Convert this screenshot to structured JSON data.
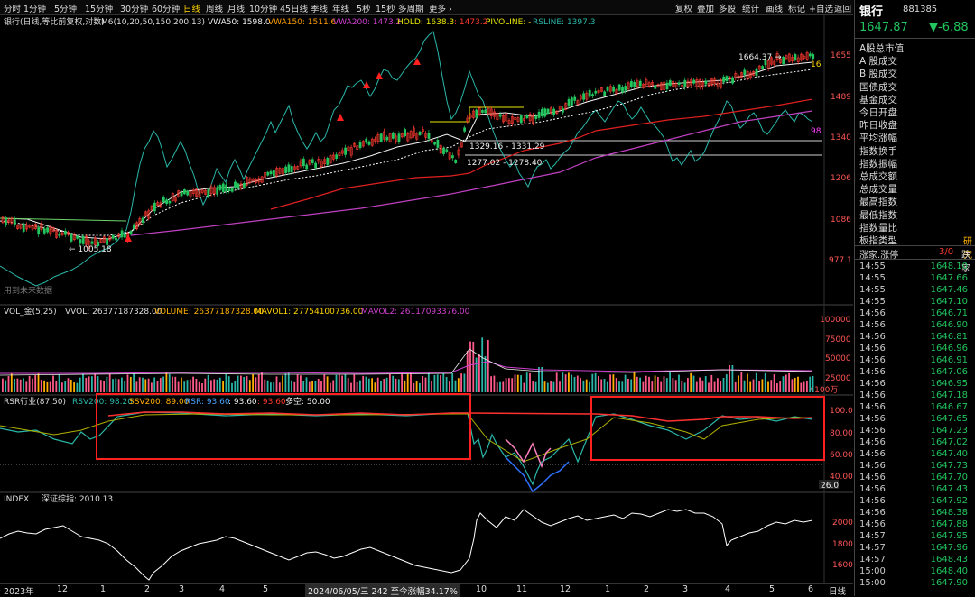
{
  "toolbar": {
    "periods": [
      "分时",
      "1分钟",
      "5分钟",
      "15分钟",
      "30分钟",
      "60分钟",
      "日线",
      "周线",
      "月线",
      "10分钟",
      "45日线",
      "季线",
      "年线",
      "5秒",
      "15秒",
      "多周期",
      "更多 ›"
    ],
    "active": "日线",
    "right_buttons": [
      "复权",
      "叠加",
      "多股",
      "统计",
      "画线",
      "标记",
      "+自选",
      "返回"
    ]
  },
  "main_chart": {
    "title": "银行(日线,等比前复权,对数)",
    "ma_label": "M6(10,20,50,150,200,13)",
    "vwa50": "VWA50: 1598.0",
    "vwa150": "VWA150: 1511.6",
    "vwa200": "VWA200: 1473.2",
    "hold": "HOLD: 1638.3",
    "hold2": ": 1473.2",
    "pivoline": "PIVOLINE: -",
    "rsline": "RSLINE: 1397.3",
    "y_ticks": [
      "1655",
      "1489",
      "1340",
      "1206",
      "1086",
      "977.1"
    ],
    "annotations": {
      "low": "← 1005.18",
      "high": "1664.37 →",
      "zone1": "1329.16 - 1331.29",
      "zone2": "1277.02 - 1278.40",
      "right_16": "16",
      "right_98": "98",
      "watermark": "用到未来数据"
    }
  },
  "volume_chart": {
    "title": "VOL_金(5,25)",
    "vvol": "VVOL: 26377187328.00",
    "volume": "VOLUME: 26377187328.00",
    "mavol1": "MAVOL1: 27754100736.00",
    "mavol2": "MAVOL2: 26117093376.00",
    "y_ticks": [
      "100000",
      "75000",
      "50000",
      "25000"
    ],
    "unit": "X100万"
  },
  "rsr_chart": {
    "title": "RSR行业(87,50)",
    "rsv200": "RSV200: 98.20",
    "ssv200": "SSV200: 89.00",
    "rsr": "RSR: 93.60",
    "v4": ": 93.60",
    "v5": ": 93.60",
    "dk": "多空: 50.00",
    "y_ticks": [
      "100.0",
      "80.00",
      "60.00",
      "40.00"
    ],
    "marker": "26.0"
  },
  "index_chart": {
    "title": "INDEX",
    "name": "深证综指: 2010.13",
    "y_ticks": [
      "2000",
      "1800",
      "1600"
    ]
  },
  "x_axis": {
    "labels": [
      "2023年",
      "12",
      "1",
      "2",
      "3",
      "4",
      "5",
      "10",
      "11",
      "12",
      "1",
      "2",
      "3",
      "4",
      "5",
      "6"
    ],
    "tooltip": "2024/06/05/三 242 至今涨幅34.17%",
    "right_label": "日线"
  },
  "quote_panel": {
    "name": "银行",
    "code": "881385",
    "price": "1647.87",
    "change": "▼-6.88",
    "fields": [
      "A股总市值",
      "A 股成交",
      "B 股成交",
      "国债成交",
      "基金成交",
      "今日开盘",
      "昨日收盘",
      "平均涨幅",
      "指数换手",
      "指数振幅",
      "总成交额",
      "总成交量",
      "最高指数",
      "最低指数",
      "指数量比",
      "板指类型"
    ],
    "board_type_value": "研究",
    "limit_label": "涨家.涨停",
    "limit_value": "3/0",
    "limit_right": "跌家",
    "ticks": [
      {
        "t": "14:55",
        "p": "1648.10"
      },
      {
        "t": "14:55",
        "p": "1647.66"
      },
      {
        "t": "14:55",
        "p": "1647.46"
      },
      {
        "t": "14:55",
        "p": "1647.10"
      },
      {
        "t": "14:56",
        "p": "1646.71"
      },
      {
        "t": "14:56",
        "p": "1646.90"
      },
      {
        "t": "14:56",
        "p": "1646.81"
      },
      {
        "t": "14:56",
        "p": "1646.96"
      },
      {
        "t": "14:56",
        "p": "1646.91"
      },
      {
        "t": "14:56",
        "p": "1647.06"
      },
      {
        "t": "14:56",
        "p": "1646.95"
      },
      {
        "t": "14:56",
        "p": "1647.18"
      },
      {
        "t": "14:56",
        "p": "1646.67"
      },
      {
        "t": "14:56",
        "p": "1647.65"
      },
      {
        "t": "14:56",
        "p": "1647.23"
      },
      {
        "t": "14:56",
        "p": "1647.02"
      },
      {
        "t": "14:56",
        "p": "1647.40"
      },
      {
        "t": "14:56",
        "p": "1647.73"
      },
      {
        "t": "14:56",
        "p": "1647.70"
      },
      {
        "t": "14:56",
        "p": "1647.43"
      },
      {
        "t": "14:56",
        "p": "1647.92"
      },
      {
        "t": "14:56",
        "p": "1648.38"
      },
      {
        "t": "14:56",
        "p": "1647.88"
      },
      {
        "t": "14:57",
        "p": "1647.95"
      },
      {
        "t": "14:57",
        "p": "1647.96"
      },
      {
        "t": "14:57",
        "p": "1648.43"
      },
      {
        "t": "15:00",
        "p": "1648.40"
      },
      {
        "t": "15:00",
        "p": "1647.90"
      }
    ]
  },
  "colors": {
    "up": "#ff3b30",
    "down": "#22c55e",
    "highlight": "#ff2020",
    "accent": "#ffd400"
  }
}
